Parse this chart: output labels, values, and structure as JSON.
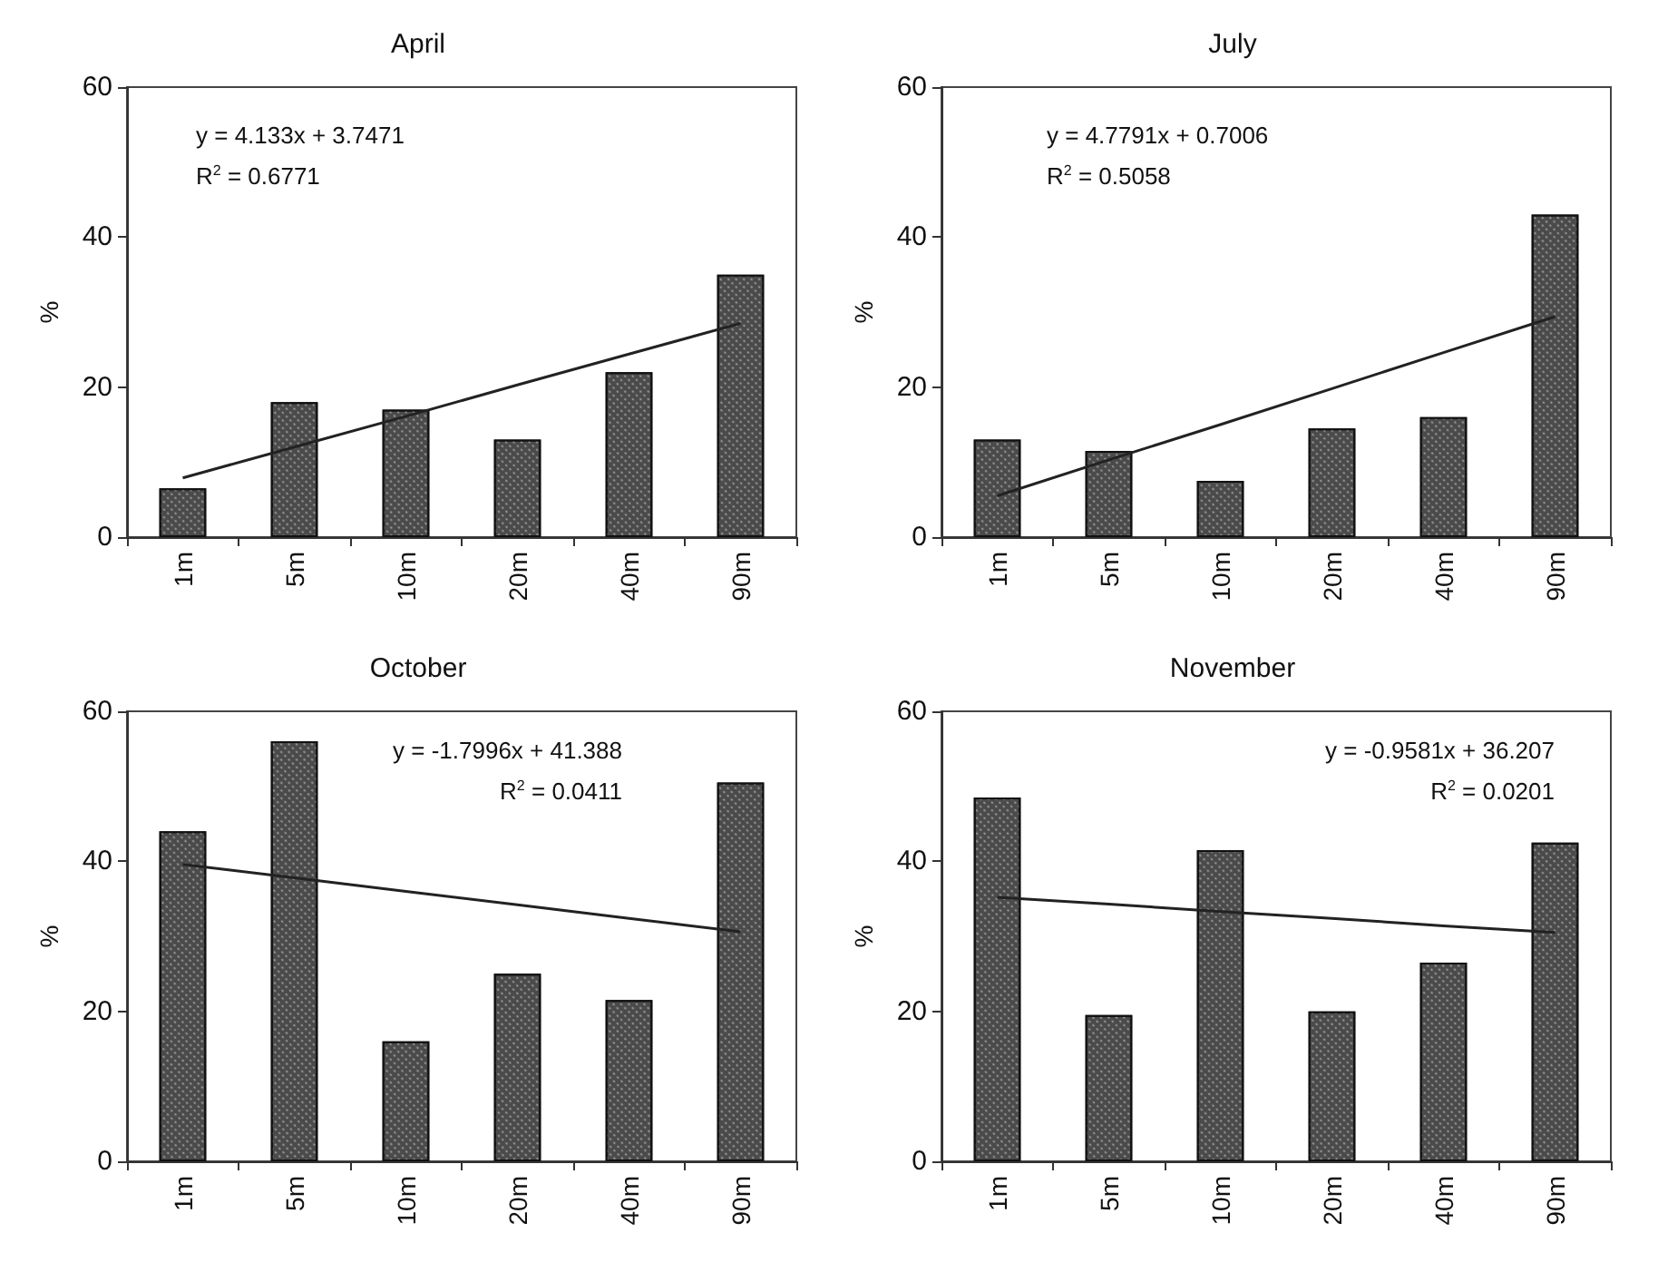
{
  "chart_data": [
    {
      "type": "bar",
      "title": "April",
      "ylabel": "%",
      "categories": [
        "1m",
        "5m",
        "10m",
        "20m",
        "40m",
        "90m"
      ],
      "ylim": [
        0,
        60
      ],
      "yticks": [
        0,
        20,
        40,
        60
      ],
      "grid": false,
      "annotations": [
        "y = 4.133x + 3.7471",
        "R$^{2}$ = 0.6771"
      ],
      "series": [
        {
          "color": "#4a4a4a",
          "values": [
            6.5,
            18,
            17,
            13,
            22,
            35
          ]
        },
        {
          "type": "line",
          "color": "#222222",
          "marker": "none",
          "line_style": "solid",
          "values": [
            7.9,
            12.0,
            16.1,
            20.3,
            24.4,
            28.5
          ]
        }
      ]
    },
    {
      "type": "bar",
      "title": "July",
      "ylabel": "%",
      "categories": [
        "1m",
        "5m",
        "10m",
        "20m",
        "40m",
        "90m"
      ],
      "ylim": [
        0,
        60
      ],
      "yticks": [
        0,
        20,
        40,
        60
      ],
      "grid": false,
      "annotations": [
        "y = 4.7791x + 0.7006",
        "R$^{2}$ = 0.5058"
      ],
      "series": [
        {
          "color": "#4a4a4a",
          "values": [
            13,
            11.5,
            7.5,
            14.5,
            16,
            43
          ]
        },
        {
          "type": "line",
          "color": "#222222",
          "marker": "none",
          "line_style": "solid",
          "values": [
            5.5,
            10.3,
            15.0,
            19.8,
            24.6,
            29.4
          ]
        }
      ]
    },
    {
      "type": "bar",
      "title": "October",
      "ylabel": "%",
      "categories": [
        "1m",
        "5m",
        "10m",
        "20m",
        "40m",
        "90m"
      ],
      "ylim": [
        0,
        60
      ],
      "yticks": [
        0,
        20,
        40,
        60
      ],
      "grid": false,
      "annotations": [
        "y = -1.7996x + 41.388",
        "R$^{2}$ = 0.0411"
      ],
      "series": [
        {
          "color": "#4a4a4a",
          "values": [
            44,
            56,
            16,
            25,
            21.5,
            50.5
          ]
        },
        {
          "type": "line",
          "color": "#222222",
          "marker": "none",
          "line_style": "solid",
          "values": [
            39.6,
            37.8,
            36.0,
            34.2,
            32.4,
            30.6
          ]
        }
      ]
    },
    {
      "type": "bar",
      "title": "November",
      "ylabel": "%",
      "categories": [
        "1m",
        "5m",
        "10m",
        "20m",
        "40m",
        "90m"
      ],
      "ylim": [
        0,
        60
      ],
      "yticks": [
        0,
        20,
        40,
        60
      ],
      "grid": false,
      "annotations": [
        "y = -0.9581x + 36.207",
        "R$^{2}$ = 0.0201"
      ],
      "series": [
        {
          "color": "#4a4a4a",
          "values": [
            48.5,
            19.5,
            41.5,
            20,
            26.5,
            42.5
          ]
        },
        {
          "type": "line",
          "color": "#222222",
          "marker": "none",
          "line_style": "solid",
          "values": [
            35.2,
            34.3,
            33.3,
            32.4,
            31.4,
            30.5
          ]
        }
      ]
    }
  ]
}
